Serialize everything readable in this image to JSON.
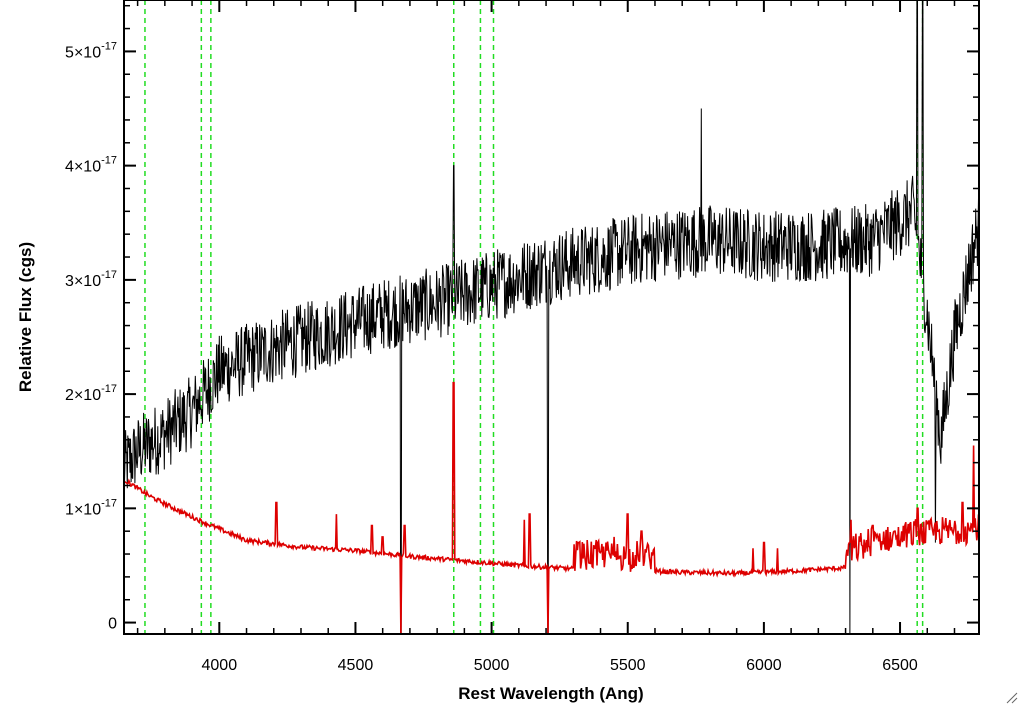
{
  "chart_data": {
    "type": "line",
    "xlabel": "Rest Wavelength (Ang)",
    "ylabel": "Relative Flux (cgs)",
    "xlim": [
      3650,
      6790
    ],
    "ylim": [
      -1e-18,
      5.45e-17
    ],
    "x_ticks": [
      4000,
      4500,
      5000,
      5500,
      6000,
      6500
    ],
    "x_tick_labels": [
      "4000",
      "4500",
      "5000",
      "5500",
      "6000",
      "6500"
    ],
    "y_ticks": [
      0,
      1e-17,
      2e-17,
      3e-17,
      4e-17,
      5e-17
    ],
    "y_tick_labels": [
      {
        "mantissa": "0",
        "exponent": ""
      },
      {
        "mantissa": "1×10",
        "exponent": "-17"
      },
      {
        "mantissa": "2×10",
        "exponent": "-17"
      },
      {
        "mantissa": "3×10",
        "exponent": "-17"
      },
      {
        "mantissa": "4×10",
        "exponent": "-17"
      },
      {
        "mantissa": "5×10",
        "exponent": "-17"
      }
    ],
    "vertical_lines": [
      3727,
      3934,
      3969,
      4861,
      4959,
      5007,
      6563,
      6583
    ],
    "vertical_line_color": "#22dd22",
    "series": [
      {
        "color": "#000000",
        "width": 1,
        "style": "noisy-spectrum",
        "continuum": [
          [
            3650,
            1.35e-17
          ],
          [
            3700,
            1.5e-17
          ],
          [
            3800,
            1.65e-17
          ],
          [
            3900,
            1.85e-17
          ],
          [
            4000,
            2.2e-17
          ],
          [
            4200,
            2.4e-17
          ],
          [
            4400,
            2.55e-17
          ],
          [
            4600,
            2.7e-17
          ],
          [
            4800,
            2.8e-17
          ],
          [
            5000,
            2.95e-17
          ],
          [
            5200,
            3.1e-17
          ],
          [
            5400,
            3.2e-17
          ],
          [
            5600,
            3.3e-17
          ],
          [
            5800,
            3.35e-17
          ],
          [
            6000,
            3.3e-17
          ],
          [
            6200,
            3.3e-17
          ],
          [
            6400,
            3.35e-17
          ],
          [
            6550,
            3.6e-17
          ],
          [
            6600,
            2.7e-17
          ],
          [
            6650,
            1.6e-17
          ],
          [
            6700,
            2.5e-17
          ],
          [
            6790,
            3.5e-17
          ]
        ],
        "noise_sigma": 3.2e-18,
        "features": [
          [
            4667,
            -1e-18
          ],
          [
            4861,
            4e-17
          ],
          [
            5207,
            -1e-18
          ],
          [
            5770,
            4.5e-17
          ],
          [
            6316,
            -1e-18
          ],
          [
            6563,
            5.45e-17
          ],
          [
            6583,
            5.45e-17
          ],
          [
            6630,
            7e-18
          ]
        ]
      },
      {
        "color": "#dd0000",
        "width": 1.6,
        "style": "error-spectrum",
        "continuum": [
          [
            3650,
            1.25e-17
          ],
          [
            3750,
            1.1e-17
          ],
          [
            3850,
            9.8e-18
          ],
          [
            3950,
            8.7e-18
          ],
          [
            4100,
            7.2e-18
          ],
          [
            4300,
            6.6e-18
          ],
          [
            4500,
            6.3e-18
          ],
          [
            4700,
            5.8e-18
          ],
          [
            4900,
            5.4e-18
          ],
          [
            5100,
            5e-18
          ],
          [
            5300,
            4.7e-18
          ],
          [
            5500,
            4.6e-18
          ],
          [
            5700,
            4.4e-18
          ],
          [
            5900,
            4.3e-18
          ],
          [
            6100,
            4.5e-18
          ],
          [
            6300,
            4.8e-18
          ],
          [
            6400,
            5.8e-18
          ],
          [
            6550,
            6.5e-18
          ],
          [
            6790,
            7e-18
          ]
        ],
        "spikes": [
          [
            4210,
            1.05e-17
          ],
          [
            4430,
            9.5e-18
          ],
          [
            4560,
            8.5e-18
          ],
          [
            4600,
            7.5e-18
          ],
          [
            4667,
            -1e-18
          ],
          [
            4680,
            8.5e-18
          ],
          [
            4861,
            2.1e-17
          ],
          [
            5120,
            9e-18
          ],
          [
            5140,
            9.5e-18
          ],
          [
            5207,
            -1e-18
          ],
          [
            5320,
            7e-18
          ],
          [
            5380,
            6.5e-18
          ],
          [
            5420,
            7e-18
          ],
          [
            5450,
            7.5e-18
          ],
          [
            5500,
            9.5e-18
          ],
          [
            5550,
            8e-18
          ],
          [
            5960,
            6.5e-18
          ],
          [
            6000,
            7e-18
          ],
          [
            6050,
            6.5e-18
          ],
          [
            6320,
            9e-18
          ],
          [
            6400,
            8.5e-18
          ],
          [
            6480,
            8e-18
          ],
          [
            6565,
            1e-17
          ],
          [
            6640,
            8e-18
          ],
          [
            6730,
            1.05e-17
          ],
          [
            6770,
            1.55e-17
          ]
        ]
      }
    ]
  }
}
